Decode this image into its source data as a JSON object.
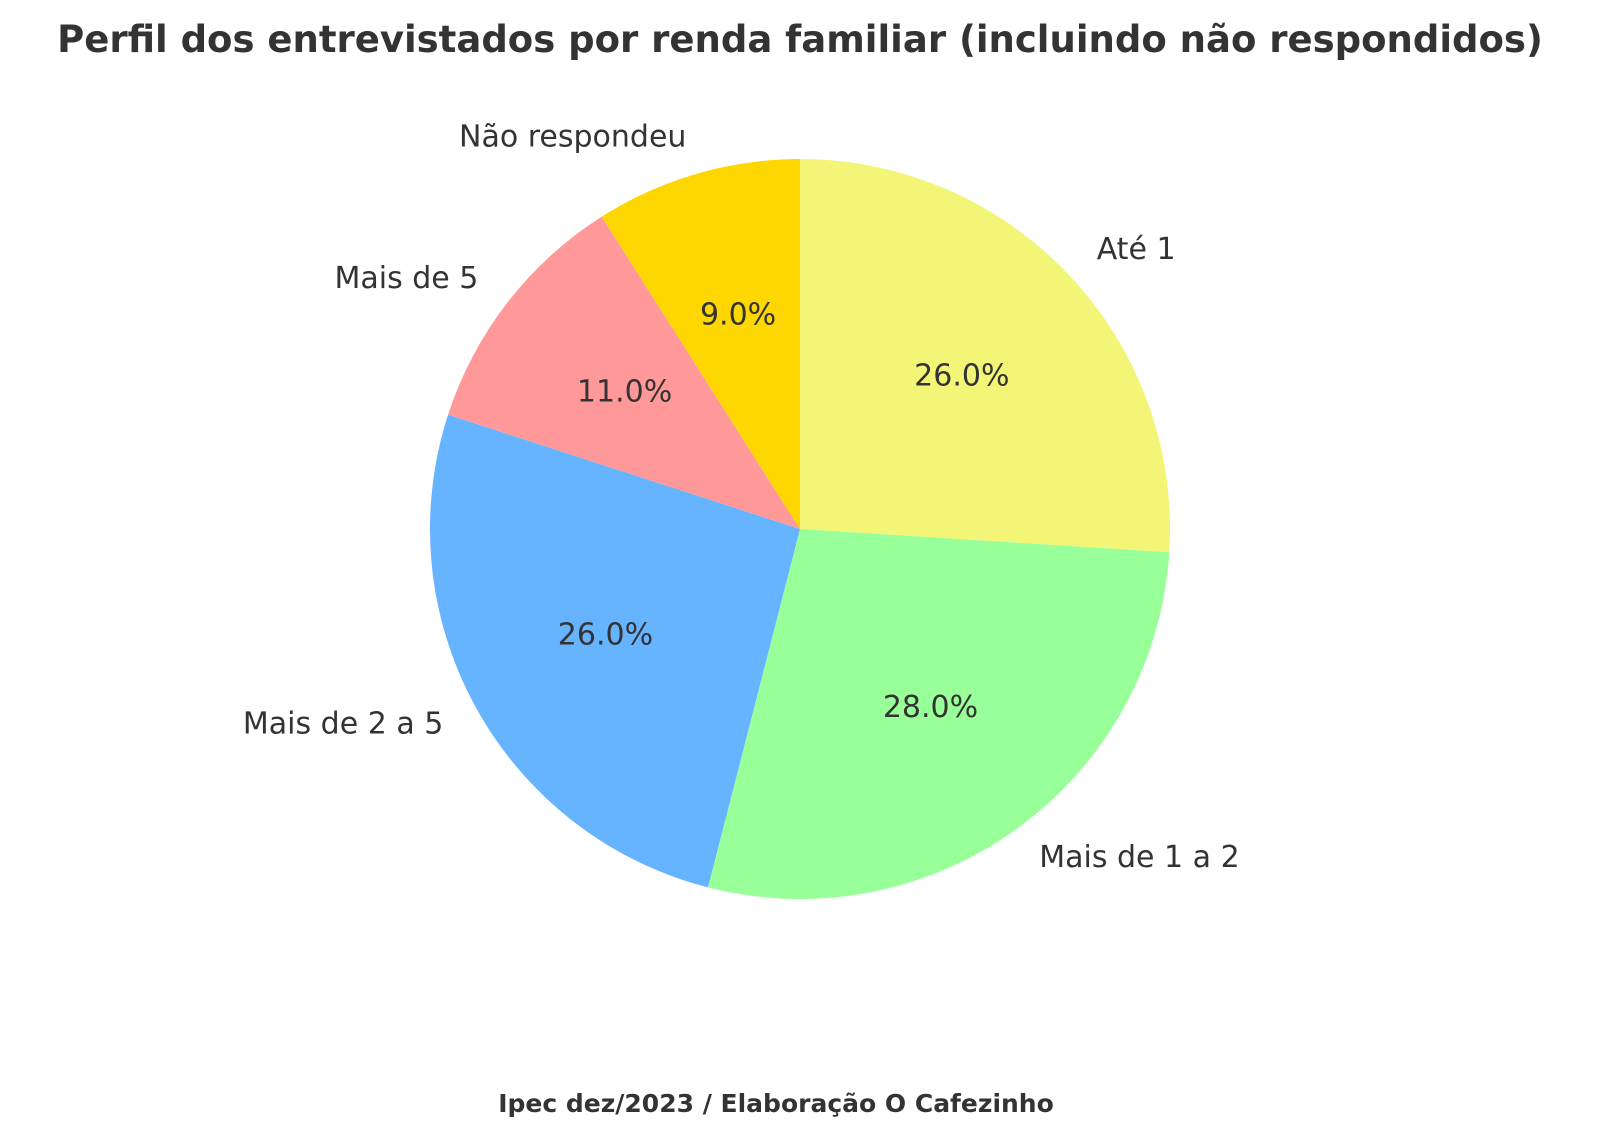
{
  "chart_data": {
    "type": "pie",
    "title": "Perfil dos entrevistados por renda familiar (incluindo não respondidos)",
    "categories": [
      "Até 1",
      "Mais de 1 a 2",
      "Mais de 2 a 5",
      "Mais de 5",
      "Não respondeu"
    ],
    "values": [
      26,
      28,
      26,
      11,
      9
    ],
    "percent_labels": [
      "26.0%",
      "28.0%",
      "26.0%",
      "11.0%",
      "9.0%"
    ],
    "colors": [
      "#f3f577",
      "#99ff99",
      "#66b3ff",
      "#ff9999",
      "#ffd700"
    ],
    "start_angle_deg": 90,
    "direction": "clockwise",
    "legend": "none"
  },
  "source_note": "Ipec dez/2023 / Elaboração O Cafezinho"
}
